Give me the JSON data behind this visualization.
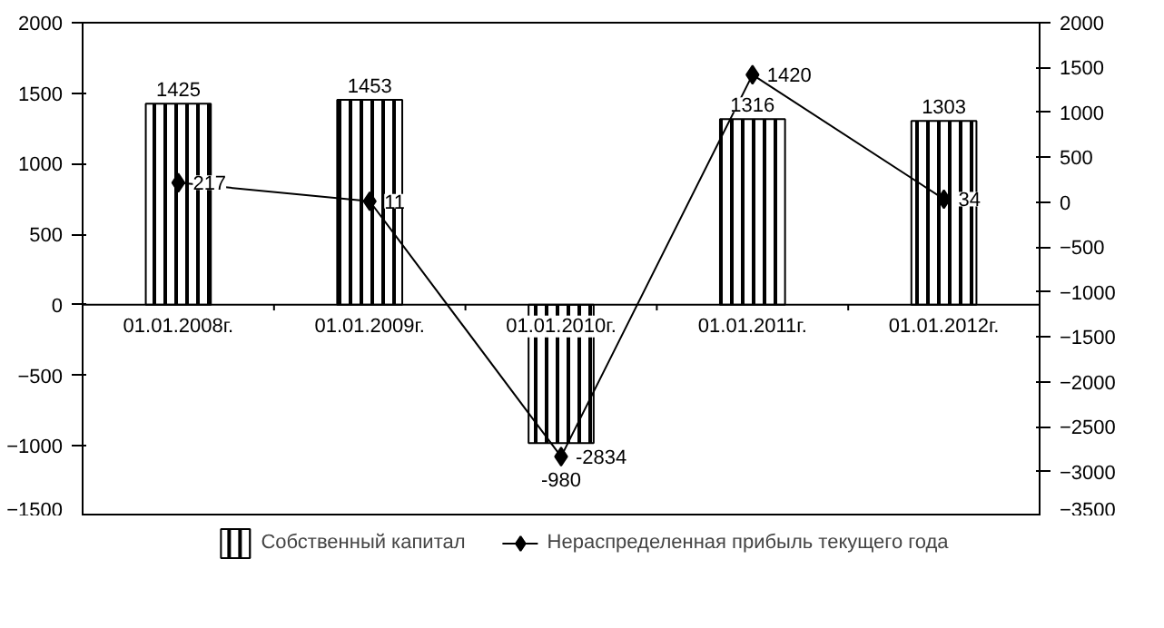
{
  "chart_data": {
    "type": "bar",
    "categories": [
      "01.01.2008г.",
      "01.01.2009г.",
      "01.01.2010г.",
      "01.01.2011г.",
      "01.01.2012г."
    ],
    "series": [
      {
        "name": "Собственный капитал",
        "type": "bar",
        "color": "#000000",
        "values": [
          1425,
          1453,
          -980,
          1316,
          1303
        ]
      },
      {
        "name": "Нераспределенная прибыль текущего года",
        "type": "line",
        "axis": "y2",
        "color": "#000000",
        "marker": "diamond",
        "values": [
          217,
          11,
          -2834,
          1420,
          34
        ]
      }
    ],
    "ylim": [
      -1500,
      2000
    ],
    "yticks": [
      -1500,
      -1000,
      -500,
      0,
      500,
      1000,
      1500,
      2000
    ],
    "y2lim": [
      -3500,
      2000
    ],
    "y2ticks": [
      -3500,
      -3000,
      -2500,
      -2000,
      -1500,
      -1000,
      -500,
      0,
      500,
      1000,
      1500,
      2000
    ],
    "data_labels": true,
    "grid": false,
    "legend": "bottom"
  }
}
